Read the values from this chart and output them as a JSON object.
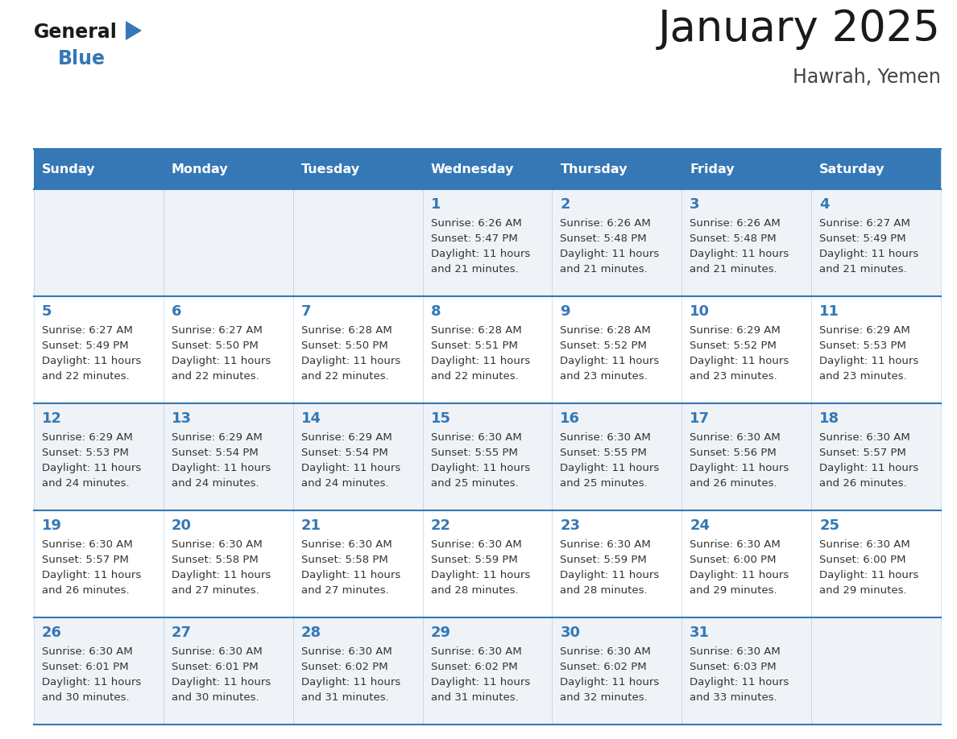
{
  "title": "January 2025",
  "subtitle": "Hawrah, Yemen",
  "header_bg": "#3578b5",
  "header_text_color": "#ffffff",
  "weekdays": [
    "Sunday",
    "Monday",
    "Tuesday",
    "Wednesday",
    "Thursday",
    "Friday",
    "Saturday"
  ],
  "row_bg_light": "#eff3f8",
  "row_bg_white": "#ffffff",
  "cell_border_color": "#3578b5",
  "day_number_color": "#3578b5",
  "text_color": "#333333",
  "title_color": "#1a1a1a",
  "subtitle_color": "#444444",
  "calendar": [
    [
      null,
      null,
      null,
      {
        "day": 1,
        "sunrise": "6:26 AM",
        "sunset": "5:47 PM",
        "daylight_line1": "Daylight: 11 hours",
        "daylight_line2": "and 21 minutes."
      },
      {
        "day": 2,
        "sunrise": "6:26 AM",
        "sunset": "5:48 PM",
        "daylight_line1": "Daylight: 11 hours",
        "daylight_line2": "and 21 minutes."
      },
      {
        "day": 3,
        "sunrise": "6:26 AM",
        "sunset": "5:48 PM",
        "daylight_line1": "Daylight: 11 hours",
        "daylight_line2": "and 21 minutes."
      },
      {
        "day": 4,
        "sunrise": "6:27 AM",
        "sunset": "5:49 PM",
        "daylight_line1": "Daylight: 11 hours",
        "daylight_line2": "and 21 minutes."
      }
    ],
    [
      {
        "day": 5,
        "sunrise": "6:27 AM",
        "sunset": "5:49 PM",
        "daylight_line1": "Daylight: 11 hours",
        "daylight_line2": "and 22 minutes."
      },
      {
        "day": 6,
        "sunrise": "6:27 AM",
        "sunset": "5:50 PM",
        "daylight_line1": "Daylight: 11 hours",
        "daylight_line2": "and 22 minutes."
      },
      {
        "day": 7,
        "sunrise": "6:28 AM",
        "sunset": "5:50 PM",
        "daylight_line1": "Daylight: 11 hours",
        "daylight_line2": "and 22 minutes."
      },
      {
        "day": 8,
        "sunrise": "6:28 AM",
        "sunset": "5:51 PM",
        "daylight_line1": "Daylight: 11 hours",
        "daylight_line2": "and 22 minutes."
      },
      {
        "day": 9,
        "sunrise": "6:28 AM",
        "sunset": "5:52 PM",
        "daylight_line1": "Daylight: 11 hours",
        "daylight_line2": "and 23 minutes."
      },
      {
        "day": 10,
        "sunrise": "6:29 AM",
        "sunset": "5:52 PM",
        "daylight_line1": "Daylight: 11 hours",
        "daylight_line2": "and 23 minutes."
      },
      {
        "day": 11,
        "sunrise": "6:29 AM",
        "sunset": "5:53 PM",
        "daylight_line1": "Daylight: 11 hours",
        "daylight_line2": "and 23 minutes."
      }
    ],
    [
      {
        "day": 12,
        "sunrise": "6:29 AM",
        "sunset": "5:53 PM",
        "daylight_line1": "Daylight: 11 hours",
        "daylight_line2": "and 24 minutes."
      },
      {
        "day": 13,
        "sunrise": "6:29 AM",
        "sunset": "5:54 PM",
        "daylight_line1": "Daylight: 11 hours",
        "daylight_line2": "and 24 minutes."
      },
      {
        "day": 14,
        "sunrise": "6:29 AM",
        "sunset": "5:54 PM",
        "daylight_line1": "Daylight: 11 hours",
        "daylight_line2": "and 24 minutes."
      },
      {
        "day": 15,
        "sunrise": "6:30 AM",
        "sunset": "5:55 PM",
        "daylight_line1": "Daylight: 11 hours",
        "daylight_line2": "and 25 minutes."
      },
      {
        "day": 16,
        "sunrise": "6:30 AM",
        "sunset": "5:55 PM",
        "daylight_line1": "Daylight: 11 hours",
        "daylight_line2": "and 25 minutes."
      },
      {
        "day": 17,
        "sunrise": "6:30 AM",
        "sunset": "5:56 PM",
        "daylight_line1": "Daylight: 11 hours",
        "daylight_line2": "and 26 minutes."
      },
      {
        "day": 18,
        "sunrise": "6:30 AM",
        "sunset": "5:57 PM",
        "daylight_line1": "Daylight: 11 hours",
        "daylight_line2": "and 26 minutes."
      }
    ],
    [
      {
        "day": 19,
        "sunrise": "6:30 AM",
        "sunset": "5:57 PM",
        "daylight_line1": "Daylight: 11 hours",
        "daylight_line2": "and 26 minutes."
      },
      {
        "day": 20,
        "sunrise": "6:30 AM",
        "sunset": "5:58 PM",
        "daylight_line1": "Daylight: 11 hours",
        "daylight_line2": "and 27 minutes."
      },
      {
        "day": 21,
        "sunrise": "6:30 AM",
        "sunset": "5:58 PM",
        "daylight_line1": "Daylight: 11 hours",
        "daylight_line2": "and 27 minutes."
      },
      {
        "day": 22,
        "sunrise": "6:30 AM",
        "sunset": "5:59 PM",
        "daylight_line1": "Daylight: 11 hours",
        "daylight_line2": "and 28 minutes."
      },
      {
        "day": 23,
        "sunrise": "6:30 AM",
        "sunset": "5:59 PM",
        "daylight_line1": "Daylight: 11 hours",
        "daylight_line2": "and 28 minutes."
      },
      {
        "day": 24,
        "sunrise": "6:30 AM",
        "sunset": "6:00 PM",
        "daylight_line1": "Daylight: 11 hours",
        "daylight_line2": "and 29 minutes."
      },
      {
        "day": 25,
        "sunrise": "6:30 AM",
        "sunset": "6:00 PM",
        "daylight_line1": "Daylight: 11 hours",
        "daylight_line2": "and 29 minutes."
      }
    ],
    [
      {
        "day": 26,
        "sunrise": "6:30 AM",
        "sunset": "6:01 PM",
        "daylight_line1": "Daylight: 11 hours",
        "daylight_line2": "and 30 minutes."
      },
      {
        "day": 27,
        "sunrise": "6:30 AM",
        "sunset": "6:01 PM",
        "daylight_line1": "Daylight: 11 hours",
        "daylight_line2": "and 30 minutes."
      },
      {
        "day": 28,
        "sunrise": "6:30 AM",
        "sunset": "6:02 PM",
        "daylight_line1": "Daylight: 11 hours",
        "daylight_line2": "and 31 minutes."
      },
      {
        "day": 29,
        "sunrise": "6:30 AM",
        "sunset": "6:02 PM",
        "daylight_line1": "Daylight: 11 hours",
        "daylight_line2": "and 31 minutes."
      },
      {
        "day": 30,
        "sunrise": "6:30 AM",
        "sunset": "6:02 PM",
        "daylight_line1": "Daylight: 11 hours",
        "daylight_line2": "and 32 minutes."
      },
      {
        "day": 31,
        "sunrise": "6:30 AM",
        "sunset": "6:03 PM",
        "daylight_line1": "Daylight: 11 hours",
        "daylight_line2": "and 33 minutes."
      },
      null
    ]
  ],
  "logo_general_color": "#1a1a1a",
  "logo_blue_color": "#3578b5",
  "fig_width": 11.88,
  "fig_height": 9.18,
  "dpi": 100
}
